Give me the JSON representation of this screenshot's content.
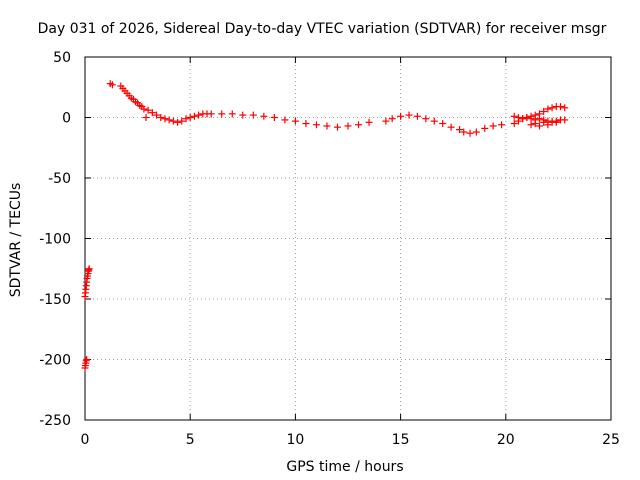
{
  "chart_data": {
    "type": "scatter",
    "title": "Day 031 of 2026, Sidereal Day-to-day VTEC variation (SDTVAR) for receiver msgr",
    "xlabel": "GPS time / hours",
    "ylabel": "SDTVAR / TECUs",
    "xlim": [
      0,
      25
    ],
    "ylim": [
      -250,
      50
    ],
    "x_ticks": [
      "0",
      "5",
      "10",
      "15",
      "20",
      "25"
    ],
    "y_ticks": [
      "50",
      "0",
      "-50",
      "-100",
      "-150",
      "-200",
      "-250"
    ],
    "grid": true,
    "marker": "+",
    "color": "#ff0000",
    "series": [
      {
        "name": "SDTVAR",
        "x": [
          0.0,
          0.02,
          0.04,
          0.06,
          0.08,
          0.1,
          0.12,
          0.14,
          0.16,
          0.18,
          0.2,
          0.0,
          0.02,
          0.04,
          0.06,
          0.08,
          1.2,
          1.3,
          1.7,
          1.8,
          1.9,
          2.0,
          2.1,
          2.2,
          2.3,
          2.4,
          2.5,
          2.6,
          2.7,
          2.8,
          3.0,
          3.2,
          3.4,
          3.6,
          3.8,
          4.0,
          4.2,
          4.4,
          4.6,
          4.8,
          5.0,
          5.2,
          5.4,
          5.6,
          5.8,
          6.0,
          6.5,
          7.0,
          7.5,
          8.0,
          8.5,
          9.0,
          9.5,
          10.0,
          10.5,
          11.0,
          11.5,
          12.0,
          12.5,
          13.0,
          13.5,
          14.3,
          14.6,
          15.0,
          15.4,
          15.8,
          16.2,
          16.6,
          17.0,
          17.4,
          17.8,
          18.0,
          18.3,
          18.6,
          19.0,
          19.4,
          19.8,
          20.4,
          20.6,
          20.8,
          21.0,
          21.2,
          21.4,
          21.6,
          21.8,
          22.0,
          22.2,
          22.4,
          22.6,
          22.8,
          20.4,
          20.6,
          20.8,
          21.0,
          21.2,
          21.4,
          21.6,
          21.8,
          22.0,
          22.2,
          22.4,
          22.6,
          22.8,
          21.2,
          21.4,
          21.6,
          21.8,
          22.0,
          22.2,
          22.4,
          2.9
        ],
        "y": [
          -148,
          -145,
          -142,
          -139,
          -136,
          -133,
          -131,
          -129,
          -127,
          -126,
          -125,
          -207,
          -205,
          -203,
          -201,
          -200,
          28,
          27,
          26,
          24,
          22,
          20,
          18,
          16,
          15,
          13,
          12,
          10,
          9,
          7,
          6,
          4,
          2,
          0,
          -1,
          -2,
          -3,
          -4,
          -3,
          -1,
          0,
          1,
          2,
          3,
          3,
          3,
          3,
          3,
          2,
          2,
          1,
          0,
          -2,
          -3,
          -5,
          -6,
          -7,
          -8,
          -7,
          -6,
          -4,
          -3,
          -1,
          1,
          2,
          1,
          -1,
          -3,
          -5,
          -8,
          -10,
          -12,
          -13,
          -12,
          -9,
          -7,
          -6,
          -5,
          -3,
          -1,
          0,
          1,
          2,
          3,
          5,
          7,
          8,
          9,
          9,
          8,
          1,
          0,
          -1,
          0,
          -1,
          -2,
          -1,
          -2,
          -3,
          -4,
          -3,
          -2,
          -2,
          -6,
          -5,
          -7,
          -4,
          -6,
          -3,
          -4,
          0
        ]
      }
    ]
  }
}
